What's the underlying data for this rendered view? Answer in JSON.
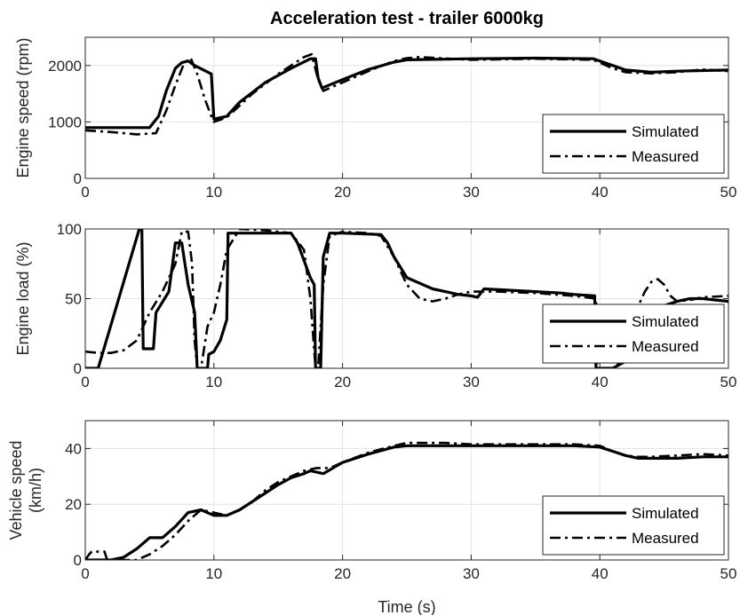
{
  "figure": {
    "title": "Acceleration test - trailer 6000kg",
    "xlabel": "Time (s)"
  },
  "chart_data": [
    {
      "type": "line",
      "ylabel": [
        "Engine speed (rpm)"
      ],
      "xlim": [
        0,
        50
      ],
      "ylim": [
        0,
        2500
      ],
      "xticks": [
        0,
        10,
        20,
        30,
        40,
        50
      ],
      "yticks": [
        0,
        1000,
        2000
      ],
      "grid": true,
      "legend_position": "bottom-right",
      "series": [
        {
          "name": "Simulated",
          "style": "solid",
          "x": [
            0,
            2,
            5,
            5.7,
            6.3,
            7,
            7.5,
            8,
            8.5,
            9.8,
            10,
            11,
            12,
            14,
            16,
            17.5,
            17.9,
            18.1,
            18.4,
            20,
            22,
            24,
            25,
            30,
            35,
            39.5,
            40,
            41,
            42,
            44,
            46,
            50
          ],
          "y": [
            900,
            900,
            900,
            1100,
            1550,
            1950,
            2050,
            2080,
            2000,
            1850,
            1050,
            1100,
            1350,
            1700,
            1950,
            2120,
            2120,
            1780,
            1600,
            1750,
            1930,
            2060,
            2100,
            2120,
            2130,
            2120,
            2080,
            2000,
            1920,
            1880,
            1900,
            1920
          ]
        },
        {
          "name": "Measured",
          "style": "dash-dot",
          "x": [
            0,
            2,
            4,
            5.5,
            6.3,
            7,
            7.7,
            8.2,
            8.7,
            9.3,
            9.8,
            10,
            11,
            13,
            15,
            17,
            17.6,
            18.1,
            18.5,
            20,
            22,
            24,
            25,
            26,
            30,
            35,
            39.5,
            40,
            41,
            42,
            44,
            46,
            48,
            50
          ],
          "y": [
            850,
            820,
            780,
            800,
            1200,
            1650,
            2050,
            2130,
            1850,
            1400,
            1100,
            1000,
            1080,
            1500,
            1850,
            2150,
            2200,
            1750,
            1550,
            1700,
            1900,
            2080,
            2130,
            2150,
            2100,
            2120,
            2100,
            2050,
            1950,
            1880,
            1860,
            1880,
            1930,
            1900
          ]
        }
      ]
    },
    {
      "type": "line",
      "ylabel": [
        "Engine load (%)"
      ],
      "xlim": [
        0,
        50
      ],
      "ylim": [
        0,
        100
      ],
      "xticks": [
        0,
        10,
        20,
        30,
        40,
        50
      ],
      "yticks": [
        0,
        50,
        100
      ],
      "grid": true,
      "legend_position": "bottom-right",
      "series": [
        {
          "name": "Simulated",
          "style": "solid",
          "x": [
            0,
            1,
            4.2,
            4.4,
            4.5,
            5.3,
            5.5,
            6.5,
            7,
            7.5,
            8,
            8.5,
            8.7,
            9.5,
            9.6,
            10,
            10.5,
            11,
            11.1,
            16,
            16.5,
            17.5,
            17.8,
            17.9,
            18.3,
            18.5,
            19,
            20,
            23,
            23.5,
            24,
            25,
            27,
            29,
            30,
            30.5,
            31,
            35,
            37,
            38,
            39.6,
            39.7,
            40.5,
            41,
            42,
            43,
            44,
            45,
            46,
            47,
            48,
            50
          ],
          "y": [
            0,
            0,
            100,
            100,
            14,
            14,
            40,
            55,
            90,
            90,
            60,
            40,
            0,
            0,
            10,
            12,
            20,
            35,
            97,
            97,
            90,
            65,
            60,
            0,
            0,
            80,
            97,
            97,
            96,
            90,
            80,
            65,
            57,
            53,
            52,
            51,
            57,
            55,
            54,
            53,
            52,
            0,
            0,
            0,
            5,
            22,
            40,
            45,
            48,
            50,
            50,
            48
          ]
        },
        {
          "name": "Measured",
          "style": "dash-dot",
          "x": [
            0,
            1,
            2,
            3,
            4,
            5,
            6,
            7,
            7.5,
            8,
            8.3,
            8.5,
            8.7,
            9,
            9.5,
            10,
            10.5,
            11,
            12,
            14,
            16,
            17,
            17.5,
            17.9,
            18.1,
            18.5,
            19,
            20,
            22,
            23,
            24,
            25,
            26,
            27,
            28,
            29,
            30,
            32,
            35,
            38,
            39.7,
            39.8,
            40.5,
            41.3,
            42,
            42.5,
            43,
            43.5,
            44,
            44.5,
            45,
            45.5,
            46,
            47,
            48,
            50
          ],
          "y": [
            12,
            11,
            11,
            13,
            20,
            40,
            55,
            75,
            98,
            98,
            75,
            20,
            0,
            0,
            30,
            40,
            60,
            85,
            100,
            99,
            97,
            85,
            50,
            0,
            0,
            60,
            95,
            98,
            97,
            95,
            80,
            60,
            50,
            48,
            50,
            53,
            55,
            55,
            54,
            52,
            50,
            0,
            0,
            0,
            20,
            35,
            45,
            55,
            62,
            64,
            60,
            52,
            48,
            49,
            51,
            52
          ]
        }
      ]
    },
    {
      "type": "line",
      "ylabel": [
        "Vehicle speed",
        "(km/h)"
      ],
      "xlim": [
        0,
        50
      ],
      "ylim": [
        0,
        50
      ],
      "xticks": [
        0,
        10,
        20,
        30,
        40,
        50
      ],
      "yticks": [
        0,
        20,
        40
      ],
      "grid": true,
      "legend_position": "bottom-right",
      "series": [
        {
          "name": "Simulated",
          "style": "solid",
          "x": [
            0,
            1,
            2,
            3,
            4,
            5,
            5.5,
            6,
            7,
            8,
            9,
            10,
            11,
            12,
            13,
            14,
            15,
            16,
            17,
            17.5,
            18,
            18.5,
            20,
            22,
            24,
            25,
            26,
            28,
            30,
            35,
            38,
            40,
            41,
            42,
            43,
            44,
            46,
            48,
            50
          ],
          "y": [
            0,
            0,
            0,
            1,
            4,
            8,
            8,
            8,
            12,
            17,
            18,
            16,
            16,
            18,
            21,
            24,
            27,
            29.5,
            31,
            32,
            31.5,
            31,
            35,
            38,
            40.5,
            41,
            41,
            41,
            41,
            41,
            41,
            40.5,
            39,
            37.5,
            36.5,
            36.5,
            36.5,
            37,
            37
          ]
        },
        {
          "name": "Measured",
          "style": "dash-dot",
          "x": [
            0,
            0.3,
            0.5,
            1,
            1.5,
            1.7,
            2,
            3,
            4,
            5,
            6,
            7,
            8,
            9,
            10,
            11,
            12,
            13,
            14,
            15,
            16,
            17,
            18,
            19,
            20,
            22,
            24,
            25,
            26,
            28,
            30,
            35,
            38,
            40,
            41,
            42,
            43,
            44,
            46,
            48,
            50
          ],
          "y": [
            0,
            2,
            3,
            3,
            3,
            0,
            0,
            0,
            0,
            2,
            5,
            9,
            14,
            18,
            17,
            16,
            18,
            21,
            25,
            28,
            30,
            32,
            33,
            33,
            35,
            38.5,
            41,
            42,
            42,
            42,
            41.5,
            41.5,
            41.5,
            41,
            39,
            37.5,
            37,
            37,
            37.5,
            38,
            37.5
          ]
        }
      ]
    }
  ]
}
